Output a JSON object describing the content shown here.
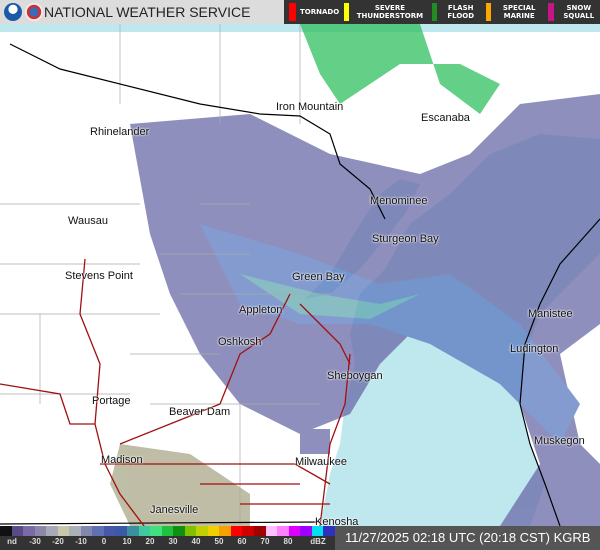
{
  "header": {
    "title": "NATIONAL WEATHER SERVICE",
    "logos": [
      "noaa-logo",
      "nws-logo"
    ]
  },
  "warnings": [
    {
      "label": "TORNADO",
      "color": "#ff0000"
    },
    {
      "label": "SEVERE THUNDERSTORM",
      "color": "#ffff00"
    },
    {
      "label": "FLASH FLOOD",
      "color": "#228b22"
    },
    {
      "label": "SPECIAL MARINE",
      "color": "#ffa500"
    },
    {
      "label": "SNOW SQUALL",
      "color": "#c71585"
    }
  ],
  "cities": [
    "Iron Mountain",
    "Escanaba",
    "Rhinelander",
    "Menominee",
    "Wausau",
    "Sturgeon Bay",
    "Stevens Point",
    "Green Bay",
    "Appleton",
    "Manistee",
    "Oshkosh",
    "Ludington",
    "Sheboygan",
    "Portage",
    "Beaver Dam",
    "Muskegon",
    "Madison",
    "Milwaukee",
    "Janesville",
    "Kenosha"
  ],
  "legend": {
    "ticks": [
      "nd",
      "-30",
      "-20",
      "-10",
      "0",
      "10",
      "20",
      "30",
      "40",
      "50",
      "60",
      "70",
      "80",
      "dBZ"
    ],
    "colors": [
      "#111",
      "#5a4a8a",
      "#7a6aa8",
      "#8a8aa8",
      "#a8a8b8",
      "#c8c8a8",
      "#a8b0b8",
      "#8088b0",
      "#6070b0",
      "#4858a8",
      "#3a5aa8",
      "#3a90a0",
      "#40c8a0",
      "#40e080",
      "#20c040",
      "#109010",
      "#80c000",
      "#c0d000",
      "#f0d000",
      "#f8a000",
      "#ff0000",
      "#d00000",
      "#a00000",
      "#ffc0ff",
      "#ff80ff",
      "#e000ff",
      "#a000ff",
      "#00e0f0",
      "#3030c0"
    ]
  },
  "timestamp": "11/27/2025 02:18 UTC (20:18 CST) KGRB"
}
